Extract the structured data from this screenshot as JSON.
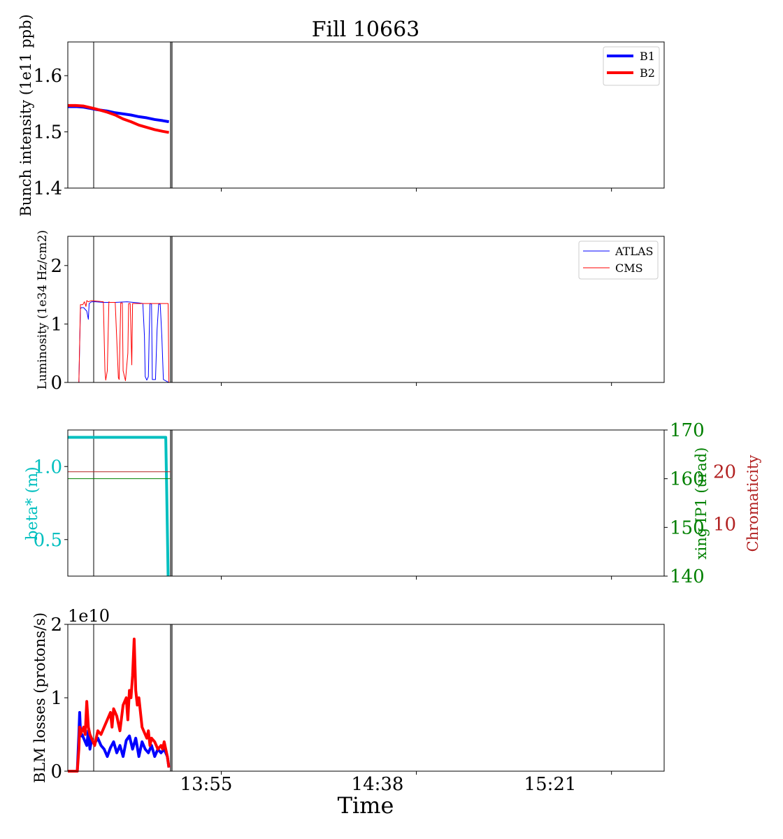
{
  "figure": {
    "title": "Fill 10663",
    "xlabel": "Time",
    "x_tick_labels": [
      "13:55",
      "14:38",
      "15:21"
    ]
  },
  "colors": {
    "b1": "#0000ff",
    "b2": "#ff0000",
    "beta": "#00bfbf",
    "xing": "#008000",
    "chroma": "#b22222",
    "marker_gray": "#707070",
    "axis": "#000000"
  },
  "chart_data": [
    {
      "type": "line",
      "ylabel": "Bunch intensity (1e11 ppb)",
      "ylim": [
        1.4,
        1.66
      ],
      "yticks": [
        1.4,
        1.5,
        1.6
      ],
      "ytick_labels": [
        "1.4",
        "1.5",
        "1.6"
      ],
      "legend": "top-right",
      "series": [
        {
          "name": "B1",
          "x": [
            0,
            10,
            20,
            35,
            50,
            60,
            70,
            80,
            90,
            100,
            110,
            120,
            128
          ],
          "y": [
            1.545,
            1.545,
            1.544,
            1.54,
            1.537,
            1.534,
            1.532,
            1.53,
            1.527,
            1.525,
            1.522,
            1.52,
            1.518
          ]
        },
        {
          "name": "B2",
          "x": [
            0,
            10,
            20,
            35,
            50,
            60,
            70,
            80,
            90,
            100,
            110,
            120,
            128
          ],
          "y": [
            1.547,
            1.547,
            1.546,
            1.541,
            1.535,
            1.53,
            1.523,
            1.518,
            1.512,
            1.508,
            1.504,
            1.501,
            1.499
          ]
        }
      ]
    },
    {
      "type": "line",
      "ylabel": "Luminosity (1e34 Hz/cm2)",
      "ylim": [
        0,
        2.5
      ],
      "yticks": [
        0,
        1,
        2
      ],
      "ytick_labels": [
        "0",
        "1",
        "2"
      ],
      "legend": "top-right",
      "series": [
        {
          "name": "ATLAS",
          "x": [
            0,
            14,
            16,
            17,
            20,
            24,
            26,
            27,
            30,
            35,
            45,
            60,
            75,
            90,
            95,
            97,
            98,
            100,
            102,
            103,
            104,
            106,
            107,
            111,
            113,
            115,
            117,
            119,
            121,
            125,
            128
          ],
          "y": [
            0,
            0,
            1.26,
            1.28,
            1.28,
            1.22,
            1.08,
            1.35,
            1.38,
            1.38,
            1.37,
            1.37,
            1.38,
            1.36,
            1.35,
            0.8,
            0.1,
            0.04,
            0.1,
            0.8,
            1.35,
            1.34,
            0.05,
            0.05,
            0.9,
            1.34,
            1.34,
            0.8,
            0.05,
            0.02,
            0
          ]
        },
        {
          "name": "CMS",
          "x": [
            0,
            14,
            16,
            19,
            21,
            23,
            24,
            26,
            30,
            45,
            47,
            48,
            50,
            52,
            53,
            55,
            60,
            64,
            65,
            67,
            69,
            70,
            73,
            76,
            77,
            79,
            81,
            82,
            90,
            100,
            110,
            120,
            127,
            128
          ],
          "y": [
            0,
            0,
            1.33,
            1.33,
            1.38,
            1.3,
            1.4,
            1.38,
            1.4,
            1.38,
            0.2,
            0.04,
            0.2,
            1.38,
            1.37,
            1.37,
            1.37,
            0.08,
            0.05,
            1.36,
            1.36,
            0.2,
            0.03,
            0.5,
            1.35,
            1.35,
            0.3,
            1.35,
            1.35,
            1.35,
            1.35,
            1.35,
            1.35,
            0
          ]
        }
      ]
    },
    {
      "type": "line",
      "ylabel": "beta* (m)",
      "ylim": [
        0.25,
        1.25
      ],
      "yticks": [
        0.5,
        1.0
      ],
      "ytick_labels": [
        "0.5",
        "1.0"
      ],
      "series": [
        {
          "x": [
            0,
            124,
            125,
            127
          ],
          "y": [
            1.2,
            1.2,
            0.9,
            0.25
          ]
        }
      ],
      "right_axes": [
        {
          "ylabel": "xing IP1 (urad)",
          "ylim": [
            140,
            170
          ],
          "yticks": [
            140,
            150,
            160,
            170
          ],
          "ytick_labels": [
            "140",
            "150",
            "160",
            "170"
          ],
          "series": [
            {
              "x": [
                0,
                130
              ],
              "y": [
                160,
                160
              ]
            }
          ]
        },
        {
          "ylabel": "Chromaticity",
          "ytick_labels": [
            "10",
            "20"
          ],
          "ylim": [
            0,
            28
          ],
          "yticks": [
            10,
            20
          ],
          "series": [
            {
              "x": [
                0,
                130
              ],
              "y": [
                20,
                20
              ]
            }
          ]
        }
      ]
    },
    {
      "type": "line",
      "ylabel": "BLM losses (protons/s)",
      "offset_label": "1e10",
      "ylim": [
        0,
        2
      ],
      "yticks": [
        0,
        1,
        2
      ],
      "ytick_labels": [
        "0",
        "1",
        "2"
      ],
      "series": [
        {
          "x": [
            0,
            12,
            14,
            15,
            16,
            17,
            18,
            20,
            24,
            26,
            28,
            30,
            34,
            38,
            42,
            46,
            50,
            54,
            58,
            62,
            66,
            70,
            74,
            78,
            82,
            86,
            90,
            94,
            98,
            102,
            106,
            110,
            114,
            118,
            122,
            126,
            128
          ],
          "y": [
            0,
            0,
            0.5,
            0.8,
            0.55,
            0.48,
            0.5,
            0.45,
            0.35,
            0.55,
            0.3,
            0.42,
            0.38,
            0.45,
            0.35,
            0.3,
            0.2,
            0.32,
            0.4,
            0.25,
            0.35,
            0.2,
            0.42,
            0.48,
            0.3,
            0.45,
            0.2,
            0.4,
            0.3,
            0.25,
            0.35,
            0.2,
            0.3,
            0.25,
            0.3,
            0.2,
            0.05
          ]
        },
        {
          "x": [
            0,
            12,
            14,
            15,
            16,
            18,
            20,
            22,
            24,
            26,
            28,
            30,
            34,
            38,
            42,
            46,
            50,
            54,
            56,
            58,
            62,
            66,
            70,
            74,
            76,
            78,
            80,
            82,
            84,
            86,
            88,
            90,
            94,
            98,
            100,
            102,
            104,
            106,
            110,
            114,
            118,
            120,
            122,
            126,
            128
          ],
          "y": [
            0,
            0,
            0.3,
            0.6,
            0.5,
            0.55,
            0.6,
            0.5,
            0.95,
            0.6,
            0.5,
            0.45,
            0.35,
            0.55,
            0.5,
            0.6,
            0.7,
            0.8,
            0.6,
            0.85,
            0.75,
            0.55,
            0.9,
            1.0,
            0.7,
            1.1,
            1.0,
            1.3,
            1.8,
            1.1,
            0.9,
            1.0,
            0.6,
            0.5,
            0.45,
            0.55,
            0.35,
            0.45,
            0.4,
            0.3,
            0.35,
            0.3,
            0.4,
            0.2,
            0.05
          ]
        }
      ]
    }
  ],
  "markers": {
    "x_range": [
      0,
      755
    ],
    "x_ticks": [
      166,
      413,
      660
    ],
    "thin_line_x": 31,
    "thick_line_x": 124
  }
}
